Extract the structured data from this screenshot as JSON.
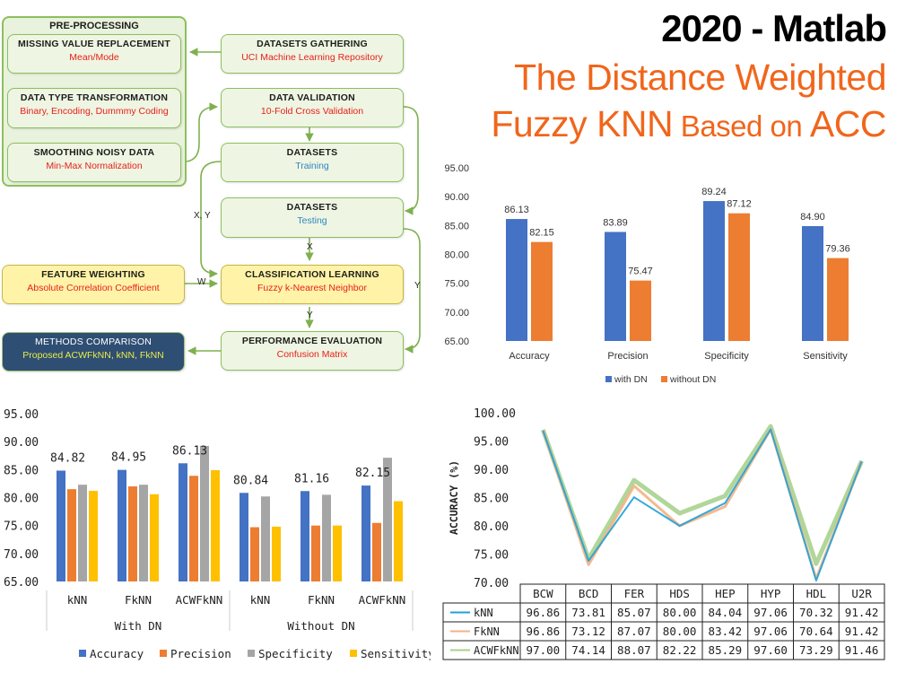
{
  "title": {
    "line1": "2020 - Matlab",
    "line2": "The Distance Weighted",
    "line3a": "Fuzzy KNN",
    "line3b": " Based on ",
    "line3c": "ACC"
  },
  "flow": {
    "preprocessing_title": "PRE-PROCESSING",
    "boxes": [
      {
        "id": "missing",
        "title": "MISSING VALUE REPLACEMENT",
        "sub": "Mean/Mode"
      },
      {
        "id": "dtype",
        "title": "DATA TYPE TRANSFORMATION",
        "sub": "Binary, Encoding, Dummmy Coding"
      },
      {
        "id": "smooth",
        "title": "SMOOTHING NOISY DATA",
        "sub": "Min-Max Normalization"
      },
      {
        "id": "gather",
        "title": "DATASETS GATHERING",
        "sub": "UCI Machine Learning Repository"
      },
      {
        "id": "valid",
        "title": "DATA VALIDATION",
        "sub": "10-Fold Cross Validation"
      },
      {
        "id": "train",
        "title": "DATASETS",
        "sub": "Training"
      },
      {
        "id": "test",
        "title": "DATASETS",
        "sub": "Testing"
      },
      {
        "id": "fw",
        "title": "FEATURE WEIGHTING",
        "sub": "Absolute Correlation Coefficient"
      },
      {
        "id": "cls",
        "title": "CLASSIFICATION LEARNING",
        "sub": "Fuzzy k-Nearest Neighbor"
      },
      {
        "id": "mc",
        "title": "METHODS COMPARISON",
        "sub": "Proposed ACWFkNN, kNN, FkNN"
      },
      {
        "id": "pe",
        "title": "PERFORMANCE EVALUATION",
        "sub": "Confusion Matrix"
      }
    ],
    "edge_labels": {
      "xy": "X, Y",
      "x": "X",
      "w": "W",
      "y1": "Y",
      "y2": "Y"
    }
  },
  "chart_data": [
    {
      "type": "bar",
      "categories": [
        "Accuracy",
        "Precision",
        "Specificity",
        "Sensitivity"
      ],
      "series": [
        {
          "name": "with DN",
          "values": [
            86.13,
            83.89,
            89.24,
            84.9
          ]
        },
        {
          "name": "without DN",
          "values": [
            82.15,
            75.47,
            87.12,
            79.36
          ]
        }
      ],
      "colors": [
        "#4472c4",
        "#ed7d31"
      ],
      "ylim": [
        65,
        95
      ],
      "yticks": [
        "95.00",
        "90.00",
        "85.00",
        "80.00",
        "75.00",
        "70.00",
        "65.00"
      ],
      "data_labels": [
        [
          "86.13",
          "83.89",
          "89.24",
          "84.90"
        ],
        [
          "82.15",
          "75.47",
          "87.12",
          "79.36"
        ]
      ],
      "legend_position": "bottom"
    },
    {
      "type": "bar",
      "categories": [
        "kNN",
        "FkNN",
        "ACWFkNN",
        "kNN",
        "FkNN",
        "ACWFkNN"
      ],
      "groups": [
        "With DN",
        "Without DN"
      ],
      "series": [
        {
          "name": "Accuracy",
          "values": [
            84.82,
            84.95,
            86.13,
            80.84,
            81.16,
            82.15
          ]
        },
        {
          "name": "Precision",
          "values": [
            81.5,
            82.0,
            83.89,
            74.7,
            75.0,
            75.47
          ]
        },
        {
          "name": "Specificity",
          "values": [
            82.3,
            82.3,
            89.24,
            80.2,
            80.5,
            87.12
          ]
        },
        {
          "name": "Sensitivity",
          "values": [
            81.2,
            80.6,
            84.9,
            74.8,
            75.0,
            79.36
          ]
        }
      ],
      "colors": [
        "#4472c4",
        "#ed7d31",
        "#a5a5a5",
        "#ffc000"
      ],
      "ylim": [
        65,
        95
      ],
      "yticks": [
        "95.00",
        "90.00",
        "85.00",
        "80.00",
        "75.00",
        "70.00",
        "65.00"
      ],
      "data_labels": [
        "84.82",
        "84.95",
        "86.13",
        "80.84",
        "81.16",
        "82.15"
      ],
      "legend_position": "bottom"
    },
    {
      "type": "line",
      "ylabel": "ACCURACY (%)",
      "categories": [
        "BCW",
        "BCD",
        "FER",
        "HDS",
        "HEP",
        "HYP",
        "HDL",
        "U2R"
      ],
      "series": [
        {
          "name": "kNN",
          "values": [
            96.86,
            73.81,
            85.07,
            80.0,
            84.04,
            97.06,
            70.32,
            91.42
          ],
          "display": [
            "96.86",
            "73.81",
            "85.07",
            "80.00",
            "84.04",
            "97.06",
            "70.32",
            "91.42"
          ]
        },
        {
          "name": "FkNN",
          "values": [
            96.86,
            73.12,
            87.07,
            80.0,
            83.42,
            97.06,
            70.64,
            91.42
          ],
          "display": [
            "96.86",
            "73.12",
            "87.07",
            "80.00",
            "83.42",
            "97.06",
            "70.64",
            "91.42"
          ]
        },
        {
          "name": "ACWFkNN",
          "values": [
            97.0,
            74.14,
            88.07,
            82.22,
            85.29,
            97.6,
            73.29,
            91.46
          ],
          "display": [
            "97.00",
            "74.14",
            "88.07",
            "82.22",
            "85.29",
            "97.60",
            "73.29",
            "91.46"
          ]
        }
      ],
      "colors": [
        "#1fa2d8",
        "#f4b183",
        "#a9d18e"
      ],
      "ylim": [
        70,
        100
      ],
      "yticks": [
        "100.00",
        "95.00",
        "90.00",
        "85.00",
        "80.00",
        "75.00",
        "70.00"
      ]
    }
  ]
}
